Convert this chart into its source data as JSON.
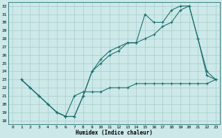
{
  "title": "",
  "xlabel": "Humidex (Indice chaleur)",
  "ylabel": "",
  "bg_color": "#cce8e8",
  "line_color": "#1a6e6e",
  "grid_color": "#a8cccc",
  "xlim": [
    -0.5,
    23.5
  ],
  "ylim": [
    17.5,
    32.5
  ],
  "xticks": [
    0,
    1,
    2,
    3,
    4,
    5,
    6,
    7,
    8,
    9,
    10,
    11,
    12,
    13,
    14,
    15,
    16,
    17,
    18,
    19,
    20,
    21,
    22,
    23
  ],
  "yticks": [
    18,
    19,
    20,
    21,
    22,
    23,
    24,
    25,
    26,
    27,
    28,
    29,
    30,
    31,
    32
  ],
  "line1_x": [
    1,
    2,
    3,
    4,
    5,
    6,
    7,
    8,
    9,
    10,
    11,
    12,
    13,
    14,
    15,
    16,
    17,
    18,
    19,
    20,
    21,
    22,
    23
  ],
  "line1_y": [
    23,
    22,
    21,
    20,
    19,
    18.5,
    18.5,
    21,
    24,
    25,
    26,
    26.5,
    27.5,
    27.5,
    28,
    28.5,
    29.5,
    30,
    31.5,
    32,
    28,
    24,
    23
  ],
  "line2_x": [
    1,
    2,
    3,
    4,
    5,
    6,
    7,
    8,
    9,
    10,
    11,
    12,
    13,
    14,
    15,
    16,
    17,
    18,
    19,
    20,
    21,
    22,
    23
  ],
  "line2_y": [
    23,
    22,
    21,
    20,
    19,
    18.5,
    18.5,
    21,
    24,
    25.5,
    26.5,
    27,
    27.5,
    27.5,
    31,
    30,
    30,
    31.5,
    32,
    32,
    28,
    23.5,
    23
  ],
  "line3_x": [
    1,
    3,
    5,
    6,
    7,
    8,
    9,
    10,
    11,
    12,
    13,
    14,
    15,
    16,
    17,
    18,
    19,
    20,
    21,
    22,
    23
  ],
  "line3_y": [
    23,
    21,
    19,
    18.5,
    21,
    21.5,
    21.5,
    21.5,
    22,
    22,
    22,
    22.5,
    22.5,
    22.5,
    22.5,
    22.5,
    22.5,
    22.5,
    22.5,
    22.5,
    23
  ]
}
